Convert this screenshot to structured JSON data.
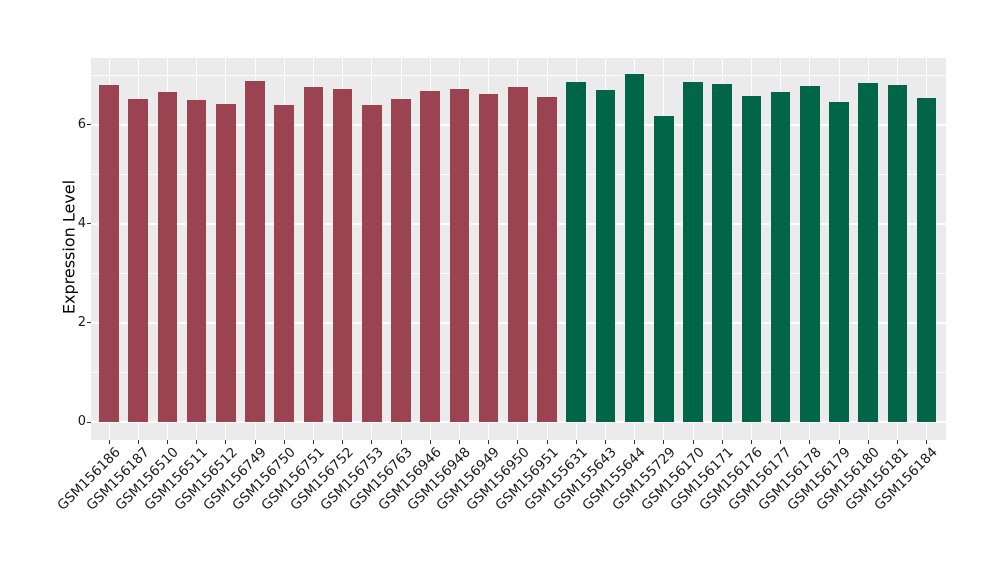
{
  "chart_data": {
    "type": "bar",
    "title": "",
    "xlabel": "",
    "ylabel": "Expression Level",
    "yticks": [
      0,
      2,
      4,
      6
    ],
    "yticks_minor": [
      1,
      3,
      5,
      7
    ],
    "ylim_display": [
      -0.363,
      7.346
    ],
    "grid": "on",
    "legend": "none",
    "panel_bg": "#EBEBEB",
    "figure_bg": "#FFFFFF",
    "group_colors": {
      "1": "#9C4351",
      "2": "#016647"
    },
    "categories": [
      "GSM156186",
      "GSM156187",
      "GSM156510",
      "GSM156511",
      "GSM156512",
      "GSM156749",
      "GSM156750",
      "GSM156751",
      "GSM156752",
      "GSM156753",
      "GSM156763",
      "GSM156946",
      "GSM156948",
      "GSM156949",
      "GSM156950",
      "GSM156951",
      "GSM155631",
      "GSM155643",
      "GSM155644",
      "GSM155729",
      "GSM156170",
      "GSM156171",
      "GSM156176",
      "GSM156177",
      "GSM156178",
      "GSM156179",
      "GSM156180",
      "GSM156181",
      "GSM156184"
    ],
    "values": [
      6.8,
      6.51,
      6.66,
      6.5,
      6.41,
      6.89,
      6.39,
      6.77,
      6.73,
      6.4,
      6.51,
      6.69,
      6.73,
      6.61,
      6.76,
      6.56,
      6.86,
      6.71,
      7.02,
      6.18,
      6.87,
      6.83,
      6.57,
      6.65,
      6.79,
      6.45,
      6.85,
      6.81,
      6.54
    ],
    "groups": [
      1,
      1,
      1,
      1,
      1,
      1,
      1,
      1,
      1,
      1,
      1,
      1,
      1,
      1,
      1,
      1,
      2,
      2,
      2,
      2,
      2,
      2,
      2,
      2,
      2,
      2,
      2,
      2,
      2
    ]
  }
}
